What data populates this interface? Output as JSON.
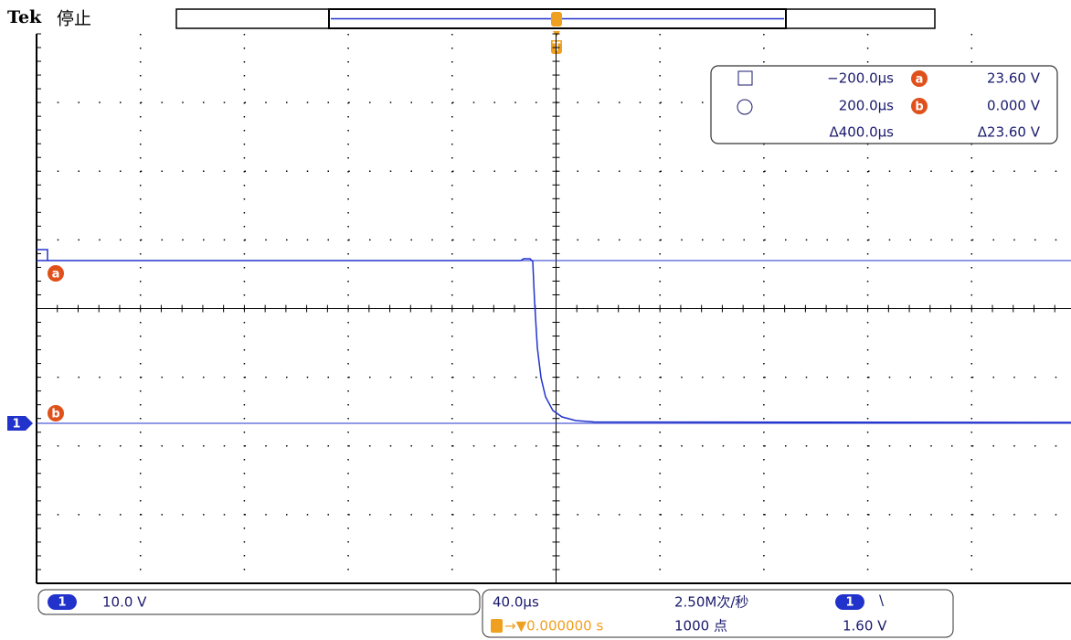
{
  "header": {
    "brand": "Tek",
    "status": "停止"
  },
  "markers": {
    "trigger": "T",
    "cursor_a": "a",
    "cursor_b": "b",
    "channel": "1"
  },
  "cursor_readout": {
    "a_time": "−200.0µs",
    "a_voltage": "23.60 V",
    "b_time": "200.0µs",
    "b_voltage": "0.000 V",
    "delta_time": "Δ400.0µs",
    "delta_voltage": "Δ23.60 V"
  },
  "bottom": {
    "channel": {
      "number": "1",
      "scale": "10.0 V"
    },
    "timebase": "40.0µs",
    "sample_rate": "2.50M次/秒",
    "trigger_source": "1",
    "trigger_slope": "\\",
    "trigger_position": "→▼0.000000 s",
    "record_length": "1000 点",
    "trigger_level": "1.60 V"
  }
}
